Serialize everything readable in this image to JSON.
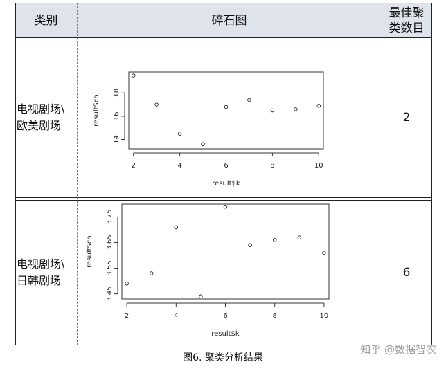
{
  "header": {
    "col_category": "类别",
    "col_chart": "碎石图",
    "col_optimal_line1": "最佳聚",
    "col_optimal_line2": "类数目"
  },
  "rows": [
    {
      "category_line1": "电视剧场\\",
      "category_line2": "欧美剧场",
      "optimal_k": "2"
    },
    {
      "category_line1": "电视剧场\\",
      "category_line2": "日韩剧场",
      "optimal_k": "6"
    }
  ],
  "caption": "图6. 聚类分析结果",
  "watermark": "知乎 @数据智农",
  "chart_data": [
    {
      "type": "scatter",
      "xlabel": "result$k",
      "ylabel": "result$ch",
      "x": [
        2,
        3,
        4,
        5,
        6,
        7,
        8,
        9,
        10
      ],
      "y": [
        19.5,
        17.0,
        14.5,
        13.6,
        16.8,
        17.4,
        16.5,
        16.6,
        16.9
      ],
      "xlim": [
        1.8,
        10.2
      ],
      "ylim": [
        13.2,
        19.8
      ],
      "xticks": [
        "2",
        "4",
        "6",
        "8",
        "10"
      ],
      "yticks": [
        "14",
        "16",
        "18"
      ],
      "grid": false
    },
    {
      "type": "scatter",
      "xlabel": "result$k",
      "ylabel": "result$ch",
      "x": [
        2,
        3,
        4,
        5,
        6,
        7,
        8,
        9,
        10
      ],
      "y": [
        3.49,
        3.53,
        3.71,
        3.44,
        3.79,
        3.64,
        3.66,
        3.67,
        3.61
      ],
      "xlim": [
        1.8,
        10.2
      ],
      "ylim": [
        3.43,
        3.8
      ],
      "xticks": [
        "2",
        "4",
        "6",
        "8",
        "10"
      ],
      "yticks": [
        "3.45",
        "3.55",
        "3.65",
        "3.75"
      ],
      "grid": false
    }
  ]
}
